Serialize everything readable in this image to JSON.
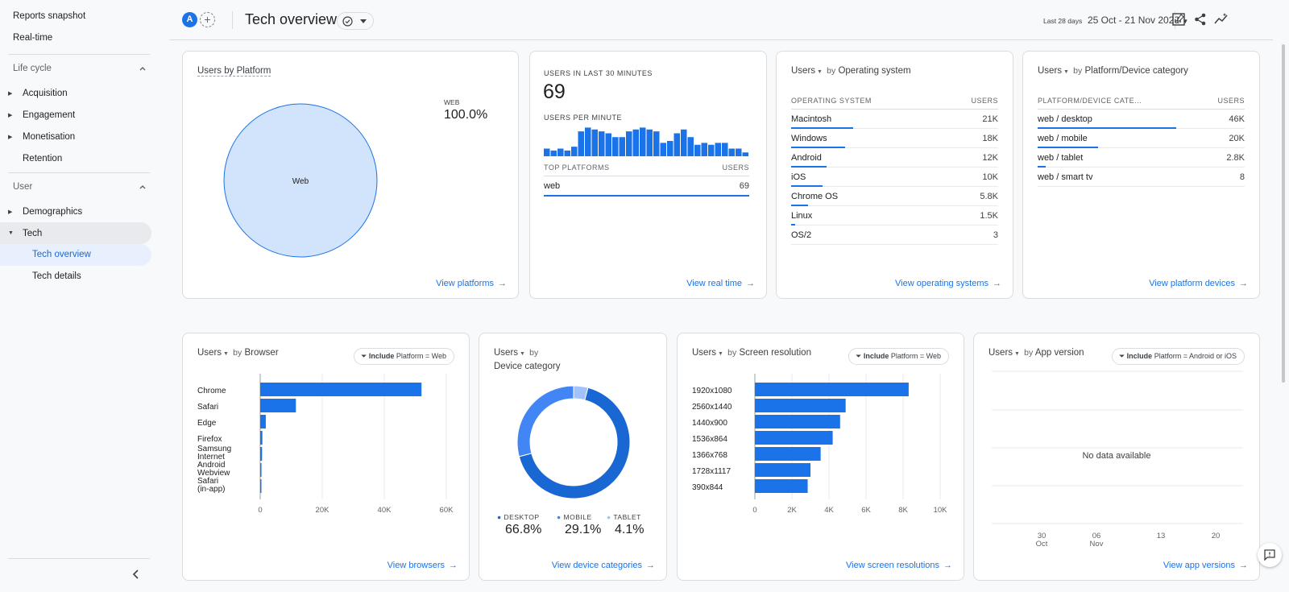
{
  "sidebar": {
    "top_items": [
      "Reports snapshot",
      "Real-time"
    ],
    "sections": [
      {
        "label": "Life cycle",
        "items": [
          "Acquisition",
          "Engagement",
          "Monetisation",
          "Retention"
        ]
      },
      {
        "label": "User",
        "items": [
          "Demographics",
          "Tech"
        ]
      }
    ],
    "tech_sub": [
      "Tech overview",
      "Tech details"
    ],
    "icons": {
      "collapse": "chevron-left-icon",
      "section_toggle": "chevron-up-icon"
    }
  },
  "header": {
    "avatar_letter": "A",
    "add_symbol": "+",
    "title": "Tech overview",
    "date_label": "Last 28 days",
    "date_range": "25 Oct - 21 Nov 2022",
    "icons": [
      "customize-report-icon",
      "share-icon",
      "insights-icon"
    ]
  },
  "cards": {
    "platform": {
      "title": "Users by Platform",
      "legend_name": "WEB",
      "legend_value": "100.0%",
      "slice_label": "Web",
      "link": "View platforms",
      "chart_data": {
        "type": "pie",
        "categories": [
          "Web"
        ],
        "values": [
          100.0
        ]
      }
    },
    "realtime": {
      "title": "USERS IN LAST 30 MINUTES",
      "value": "69",
      "subtitle": "USERS PER MINUTE",
      "col1": "TOP PLATFORMS",
      "col2": "USERS",
      "row": {
        "label": "web",
        "value": "69"
      },
      "link": "View real time",
      "chart_data": {
        "type": "bar",
        "values": [
          4,
          3,
          4,
          3,
          5,
          13,
          15,
          14,
          13,
          12,
          10,
          10,
          13,
          14,
          15,
          14,
          13,
          7,
          8,
          12,
          14,
          10,
          6,
          7,
          6,
          7,
          7,
          4,
          4,
          2
        ]
      }
    },
    "os": {
      "metric": "Users",
      "by": "by",
      "dimension": "Operating system",
      "col1": "OPERATING SYSTEM",
      "col2": "USERS",
      "rows": [
        {
          "label": "Macintosh",
          "value": "21K",
          "share": 0.3
        },
        {
          "label": "Windows",
          "value": "18K",
          "share": 0.26
        },
        {
          "label": "Android",
          "value": "12K",
          "share": 0.17
        },
        {
          "label": "iOS",
          "value": "10K",
          "share": 0.15
        },
        {
          "label": "Chrome OS",
          "value": "5.8K",
          "share": 0.08
        },
        {
          "label": "Linux",
          "value": "1.5K",
          "share": 0.02
        },
        {
          "label": "OS/2",
          "value": "3",
          "share": 0
        }
      ],
      "link": "View operating systems"
    },
    "device": {
      "metric": "Users",
      "by": "by",
      "dimension": "Platform/Device category",
      "col1": "PLATFORM/DEVICE CATE...",
      "col2": "USERS",
      "rows": [
        {
          "label": "web / desktop",
          "value": "46K",
          "share": 0.67
        },
        {
          "label": "web / mobile",
          "value": "20K",
          "share": 0.29
        },
        {
          "label": "web / tablet",
          "value": "2.8K",
          "share": 0.04
        },
        {
          "label": "web / smart tv",
          "value": "8",
          "share": 0
        }
      ],
      "link": "View platform devices"
    },
    "browser": {
      "metric": "Users",
      "by": "by",
      "dimension": "Browser",
      "filter_bold": "Include",
      "filter_text": "Platform = Web",
      "link": "View browsers",
      "chart_data": {
        "type": "bar",
        "categories": [
          "Chrome",
          "Safari",
          "Edge",
          "Firefox",
          "Samsung Internet",
          "Android Webview",
          "Safari (in-app)"
        ],
        "values": [
          52000,
          11500,
          1800,
          700,
          600,
          400,
          200
        ],
        "ticks": [
          "0",
          "20K",
          "40K",
          "60K"
        ],
        "xlim": [
          0,
          60000
        ]
      }
    },
    "devcat": {
      "metric": "Users",
      "by": "by",
      "dimension": "Device category",
      "link": "View device categories",
      "legend": [
        {
          "name": "DESKTOP",
          "value": "66.8%",
          "color": "#1967d2"
        },
        {
          "name": "MOBILE",
          "value": "29.1%",
          "color": "#4285f4"
        },
        {
          "name": "TABLET",
          "value": "4.1%",
          "color": "#a1c2fa"
        }
      ],
      "chart_data": {
        "type": "pie",
        "categories": [
          "DESKTOP",
          "MOBILE",
          "TABLET"
        ],
        "values": [
          66.8,
          29.1,
          4.1
        ]
      }
    },
    "screen": {
      "metric": "Users",
      "by": "by",
      "dimension": "Screen resolution",
      "filter_bold": "Include",
      "filter_text": "Platform = Web",
      "link": "View screen resolutions",
      "chart_data": {
        "type": "bar",
        "categories": [
          "1920x1080",
          "2560x1440",
          "1440x900",
          "1536x864",
          "1366x768",
          "1728x1117",
          "390x844"
        ],
        "values": [
          8300,
          4900,
          4600,
          4200,
          3550,
          3000,
          2850
        ],
        "ticks": [
          "0",
          "2K",
          "4K",
          "6K",
          "8K",
          "10K"
        ],
        "xlim": [
          0,
          10000
        ]
      }
    },
    "appver": {
      "metric": "Users",
      "by": "by",
      "dimension": "App version",
      "filter_bold": "Include",
      "filter_text": "Platform = Android or iOS",
      "empty": "No data available",
      "ticks": [
        {
          "d": "30",
          "m": "Oct"
        },
        {
          "d": "06",
          "m": "Nov"
        },
        {
          "d": "13",
          "m": ""
        },
        {
          "d": "20",
          "m": ""
        }
      ],
      "link": "View app versions"
    }
  },
  "colors": {
    "accent": "#1a73e8",
    "pie_light": "#d2e3fc"
  }
}
